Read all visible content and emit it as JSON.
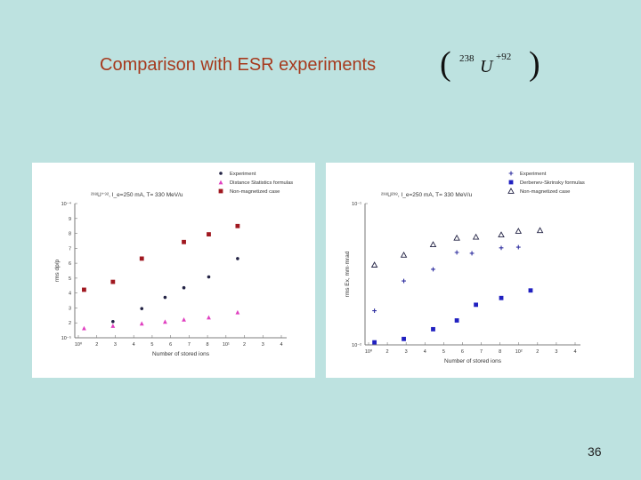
{
  "slide": {
    "title": "Comparison with ESR experiments",
    "formula": {
      "mass": "238",
      "symbol": "U",
      "charge": "+92",
      "open": "(",
      "close": ")"
    },
    "page_number": "36"
  },
  "chart_data": [
    {
      "type": "scatter",
      "annotation": "²³⁸U⁺⁹², I_e=250 mA, T= 330 MeV/u",
      "xlabel": "Number of stored ions",
      "ylabel": "rms dp/p",
      "xscale": "log",
      "yscale": "log",
      "xlim": [
        8,
        1300
      ],
      "ylim": [
        1e-05,
        0.0001
      ],
      "x_ticks": [
        "10⁰",
        "2",
        "3",
        "4",
        "5",
        "6",
        "7",
        "8",
        "10¹",
        "2",
        "3",
        "4"
      ],
      "y_ticks": [
        "10⁻⁴",
        "9",
        "8",
        "7",
        "6",
        "5",
        "4",
        "3",
        "2",
        "10⁻⁵"
      ],
      "legend_position": "top-right",
      "series": [
        {
          "name": "Experiment",
          "marker": "dot",
          "color": "#222244",
          "x": [
            20,
            40,
            70,
            110,
            200,
            400
          ],
          "y": [
            1.32e-05,
            1.65e-05,
            2e-05,
            2.36e-05,
            2.84e-05,
            3.89e-05
          ]
        },
        {
          "name": "Distance Statistics formulas",
          "marker": "triangle",
          "color": "#e040c0",
          "x": [
            10,
            20,
            40,
            70,
            110,
            200,
            400
          ],
          "y": [
            1.18e-05,
            1.23e-05,
            1.28e-05,
            1.32e-05,
            1.37e-05,
            1.42e-05,
            1.55e-05
          ]
        },
        {
          "name": "Non-magnetized case",
          "marker": "square",
          "color": "#a01820",
          "x": [
            10,
            20,
            40,
            110,
            200,
            400
          ],
          "y": [
            2.28e-05,
            2.61e-05,
            3.89e-05,
            5.17e-05,
            5.9e-05,
            6.8e-05
          ]
        }
      ]
    },
    {
      "type": "scatter",
      "annotation": "²³⁸U²³⁸, I_e=250 mA, T= 330 MeV/u",
      "xlabel": "Number of stored ions",
      "ylabel": "rms Ex, mm·mrad",
      "xscale": "log",
      "yscale": "log",
      "xlim": [
        8,
        1300
      ],
      "ylim": [
        0.01,
        2
      ],
      "x_ticks": [
        "10⁰",
        "2",
        "3",
        "4",
        "5",
        "6",
        "7",
        "8",
        "10²",
        "2",
        "3",
        "4"
      ],
      "y_ticks": [
        "10⁻¹",
        "10⁻²"
      ],
      "legend_position": "top-right",
      "series": [
        {
          "name": "Experiment",
          "marker": "plus",
          "color": "#3030a0",
          "x": [
            10,
            20,
            40,
            70,
            100,
            200,
            300
          ],
          "y": [
            0.036,
            0.11,
            0.17,
            0.32,
            0.31,
            0.38,
            0.39
          ]
        },
        {
          "name": "Derbenev-Skrinsky formulas",
          "marker": "square",
          "color": "#2020c0",
          "x": [
            10,
            20,
            40,
            70,
            110,
            200,
            400
          ],
          "y": [
            0.011,
            0.0125,
            0.018,
            0.025,
            0.045,
            0.058,
            0.077
          ]
        },
        {
          "name": "Non-magnetized case",
          "marker": "triangle-open",
          "color": "#222244",
          "x": [
            10,
            20,
            40,
            70,
            110,
            200,
            300,
            500
          ],
          "y": [
            0.2,
            0.29,
            0.43,
            0.55,
            0.57,
            0.62,
            0.71,
            0.73
          ]
        }
      ]
    }
  ]
}
